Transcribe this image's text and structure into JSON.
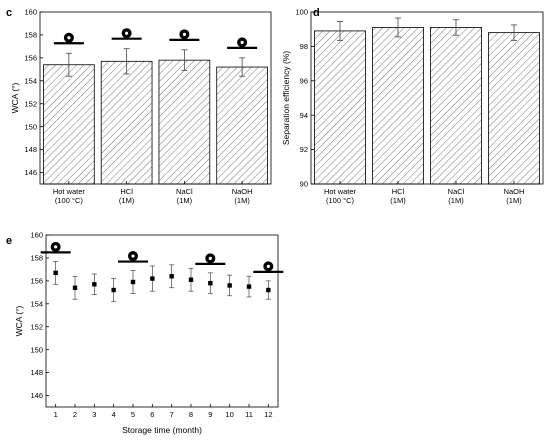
{
  "chart_data": [
    {
      "panel_label": "c",
      "type": "bar",
      "ylabel": "WCA (°)",
      "xlabel": "",
      "ylim": [
        145,
        160
      ],
      "yticks": [
        "146",
        "148",
        "150",
        "152",
        "154",
        "156",
        "158",
        "160"
      ],
      "categories": [
        [
          "Hot water",
          "(100 °C)"
        ],
        [
          "HCl",
          "(1M)"
        ],
        [
          "NaCl",
          "(1M)"
        ],
        [
          "NaOH",
          "(1M)"
        ]
      ],
      "values": [
        155.4,
        155.7,
        155.8,
        155.2
      ],
      "errors": [
        1.0,
        1.1,
        0.9,
        0.8
      ],
      "hatch": "diagonal",
      "droplet_icons": true
    },
    {
      "panel_label": "d",
      "type": "bar",
      "ylabel": "Separation efficiency (%)",
      "xlabel": "",
      "ylim": [
        90,
        100
      ],
      "yticks": [
        "90",
        "92",
        "94",
        "96",
        "98",
        "100"
      ],
      "categories": [
        [
          "Hot water",
          "(100 °C)"
        ],
        [
          "HCl",
          "(1M)"
        ],
        [
          "NaCl",
          "(1M)"
        ],
        [
          "NaOH",
          "(1M)"
        ]
      ],
      "values": [
        98.9,
        99.1,
        99.1,
        98.8
      ],
      "errors": [
        0.55,
        0.55,
        0.45,
        0.45
      ],
      "hatch": "diagonal"
    },
    {
      "panel_label": "e",
      "type": "scatter",
      "ylabel": "WCA (°)",
      "xlabel": "Storage time (month)",
      "ylim": [
        145,
        160
      ],
      "yticks": [
        "146",
        "148",
        "150",
        "152",
        "154",
        "156",
        "158",
        "160"
      ],
      "xlim": [
        0.5,
        12.5
      ],
      "xticks": [
        "1",
        "2",
        "3",
        "4",
        "5",
        "6",
        "7",
        "8",
        "9",
        "10",
        "11",
        "12"
      ],
      "x": [
        1,
        2,
        3,
        4,
        5,
        6,
        7,
        8,
        9,
        10,
        11,
        12
      ],
      "y": [
        156.7,
        155.4,
        155.7,
        155.2,
        155.9,
        156.2,
        156.4,
        156.1,
        155.8,
        155.6,
        155.5,
        155.2
      ],
      "errors": [
        1.0,
        1.0,
        0.9,
        1.0,
        1.0,
        1.1,
        1.0,
        1.0,
        0.9,
        0.9,
        0.9,
        0.8
      ],
      "droplet_icons_at": [
        1,
        5,
        9,
        12
      ]
    }
  ]
}
